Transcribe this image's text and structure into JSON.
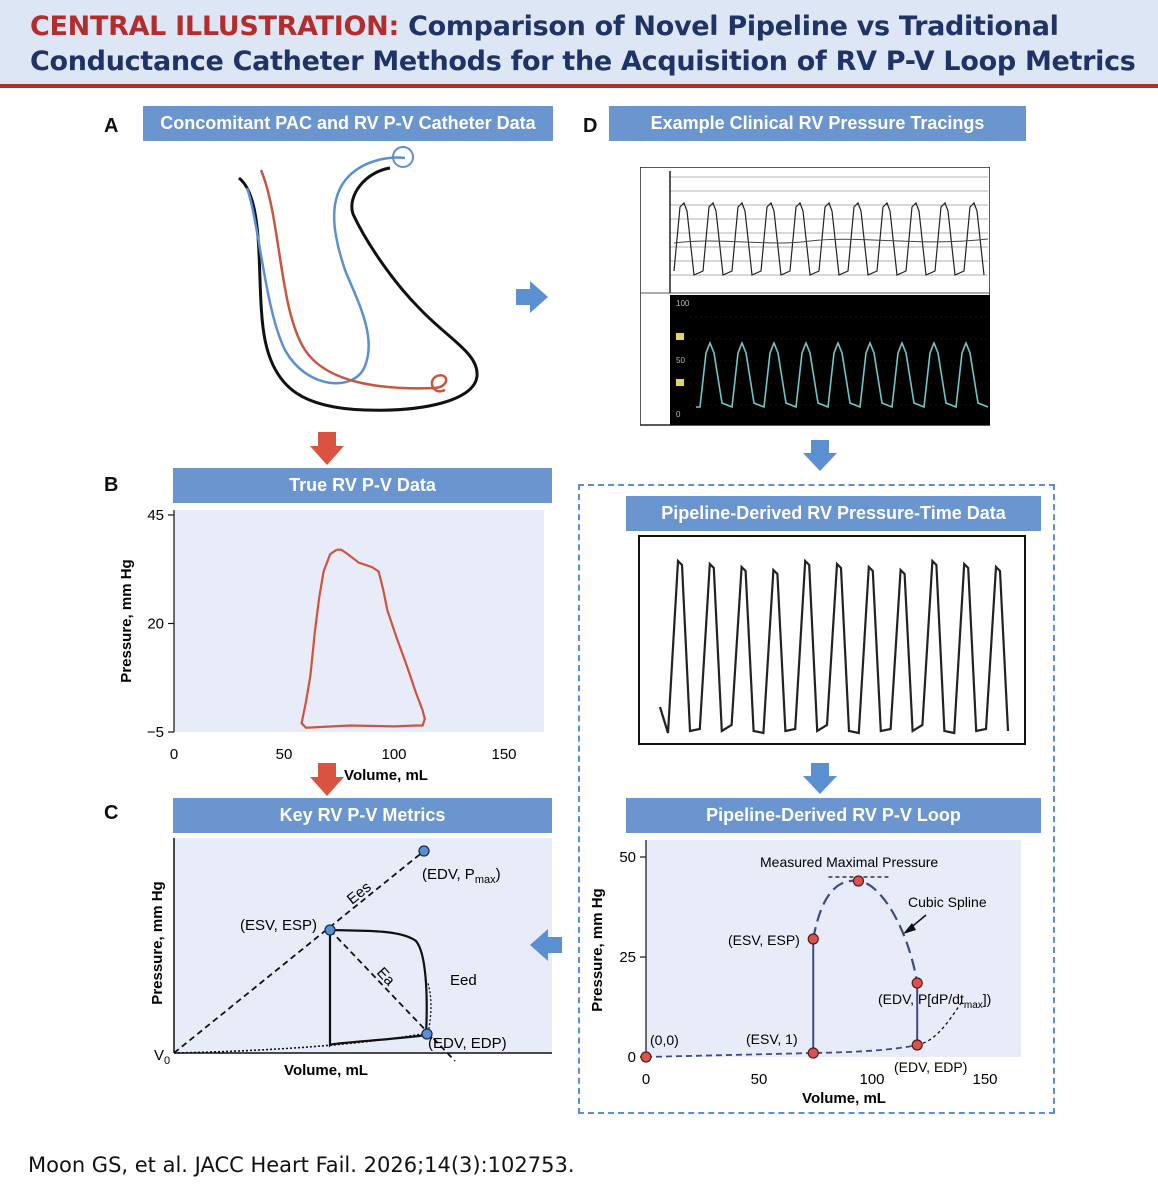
{
  "header": {
    "label": "CENTRAL ILLUSTRATION:",
    "title_line1": "Comparison of Novel Pipeline vs Traditional",
    "title_line2": "Conductance Catheter Methods for the Acquisition of RV P-V Loop Metrics"
  },
  "panels": {
    "A": {
      "letter": "A",
      "title": "Concomitant PAC and RV P-V Catheter Data"
    },
    "B": {
      "letter": "B",
      "title": "True RV P-V Data",
      "xlabel": "Volume, mL",
      "ylabel": "Pressure, mm Hg",
      "xticks": [
        "0",
        "50",
        "100",
        "150"
      ],
      "yticks": [
        "45",
        "20",
        "−5"
      ]
    },
    "C": {
      "letter": "C",
      "title": "Key RV P-V Metrics",
      "xlabel": "Volume, mL",
      "ylabel": "Pressure, mm Hg",
      "labels": {
        "ees": "Ees",
        "ea": "Ea",
        "eed": "Eed",
        "esv_esp": "(ESV, ESP)",
        "edv_pmax_pre": "(EDV, P",
        "edv_pmax_sub": "max",
        "edv_pmax_post": ")",
        "edv_edp": "(EDV, EDP)",
        "v0": "V",
        "v0_sub": "0"
      }
    },
    "D": {
      "letter": "D",
      "title": "Example Clinical RV Pressure Tracings",
      "monitor_ticks": [
        "100",
        "50",
        "0"
      ]
    },
    "E": {
      "title": "Pipeline-Derived RV Pressure-Time Data"
    },
    "F": {
      "title": "Pipeline-Derived RV P-V Loop",
      "xlabel": "Volume, mL",
      "ylabel": "Pressure, mm Hg",
      "xticks": [
        "0",
        "50",
        "100",
        "150"
      ],
      "yticks": [
        "50",
        "25",
        "0"
      ],
      "labels": {
        "max_pressure": "Measured Maximal Pressure",
        "cubic_spline": "Cubic Spline",
        "esv_esp": "(ESV, ESP)",
        "origin": "(0,0)",
        "esv_1": "(ESV, 1)",
        "edv_edp": "(EDV, EDP)",
        "edv_dpdt_pre": "(EDV, P[dP/dt",
        "edv_dpdt_sub": "max",
        "edv_dpdt_post": "])"
      }
    }
  },
  "colors": {
    "header_bg": "#dde6f4",
    "header_text": "#1f3366",
    "accent_red": "#b32d2e",
    "bar_blue": "#6a95cf",
    "plot_bg": "#e8ecf8",
    "loop_red": "#d0523f",
    "catheter_blue": "#5a8fd0",
    "point_red": "#d9534f",
    "point_blue": "#5a8fd0",
    "spline_navy": "#3f4a86",
    "monitor_trace": "#6ec7c4"
  },
  "chart_data": [
    {
      "type": "line",
      "panel": "B",
      "title": "True RV P-V Data",
      "xlabel": "Volume, mL",
      "ylabel": "Pressure, mm Hg",
      "xlim": [
        0,
        150
      ],
      "ylim": [
        -5,
        45
      ],
      "series": [
        {
          "x": [
            74,
            71,
            68,
            66,
            64,
            62,
            60,
            58,
            60,
            80,
            100,
            110,
            113,
            114,
            113,
            110,
            106,
            101,
            97,
            95,
            93,
            90,
            84,
            79,
            76,
            74
          ],
          "y": [
            37,
            36,
            32,
            26,
            18,
            8,
            2,
            -3,
            -4,
            -3.5,
            -3.7,
            -3.5,
            -3.5,
            -2,
            0,
            4,
            10,
            17,
            23,
            28,
            32,
            33,
            34,
            36,
            37,
            37
          ]
        }
      ]
    },
    {
      "type": "line",
      "panel": "F",
      "title": "Pipeline-Derived RV P-V Loop",
      "xlabel": "Volume, mL",
      "ylabel": "Pressure, mm Hg",
      "xlim": [
        0,
        160
      ],
      "ylim": [
        0,
        55
      ],
      "points": [
        {
          "label": "(0,0)",
          "x": 0,
          "y": 0
        },
        {
          "label": "(ESV, 1)",
          "x": 74,
          "y": 1
        },
        {
          "label": "(ESV, ESP)",
          "x": 74,
          "y": 29.5
        },
        {
          "label": "max",
          "x": 94,
          "y": 44
        },
        {
          "label": "(EDV, P[dP/dtmax])",
          "x": 120,
          "y": 18.5
        },
        {
          "label": "(EDV, EDP)",
          "x": 120,
          "y": 3
        }
      ]
    }
  ]
}
